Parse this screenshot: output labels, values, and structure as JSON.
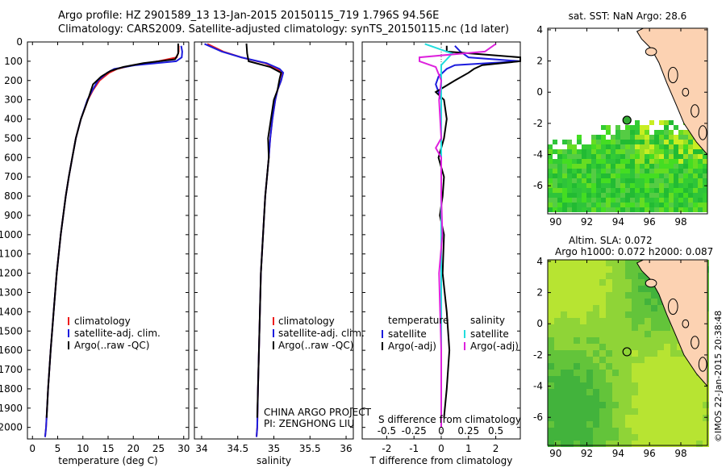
{
  "header": {
    "line1": "Argo profile: HZ 2901589_13 13-Jan-2015 20150115_719 1.796S 94.56E",
    "line2": "Climatology: CARS2009. Satellite-adjusted climatology: synTS_20150115.nc (1d later)"
  },
  "colors": {
    "climatology": "#ee1c1c",
    "satellite": "#1c1cdd",
    "argo": "#000000",
    "sal_sat": "#22dddd",
    "sal_argo": "#dd22dd",
    "land": "#fcd2b2"
  },
  "depth_axis": {
    "ticks": [
      0,
      100,
      200,
      300,
      400,
      500,
      600,
      700,
      800,
      900,
      1000,
      1100,
      1200,
      1300,
      1400,
      1500,
      1600,
      1700,
      1800,
      1900,
      2000
    ],
    "range": [
      0,
      2060
    ]
  },
  "chart_data": [
    {
      "type": "line",
      "name": "temperature",
      "xlabel": "temperature (deg C)",
      "xlim": [
        -1,
        31
      ],
      "xticks": [
        0,
        5,
        10,
        15,
        20,
        25,
        30
      ],
      "legend": [
        "climatology",
        "satellite-adj. clim.",
        "Argo(..raw -QC)"
      ],
      "series": [
        {
          "name": "climatology",
          "depth": [
            20,
            50,
            80,
            100,
            120,
            140,
            160,
            200,
            250,
            300,
            400,
            500,
            600,
            700,
            800,
            1000,
            1200,
            1400,
            1600,
            1800,
            2000,
            2050
          ],
          "values": [
            29.0,
            29.0,
            28.6,
            25.0,
            20.0,
            16.8,
            15.2,
            13.3,
            12.0,
            11.0,
            9.6,
            8.6,
            7.9,
            7.2,
            6.6,
            5.6,
            4.8,
            4.2,
            3.6,
            3.1,
            2.7,
            2.5
          ]
        },
        {
          "name": "satellite-adj. clim.",
          "depth": [
            20,
            50,
            80,
            100,
            120,
            140,
            160,
            200,
            250,
            300,
            400,
            500,
            600,
            700,
            800,
            1000,
            1200,
            1400,
            1600,
            1800,
            2000,
            2050
          ],
          "values": [
            29.5,
            29.7,
            29.6,
            28.5,
            20.5,
            16.2,
            14.8,
            13.0,
            11.9,
            10.9,
            9.6,
            8.6,
            7.9,
            7.2,
            6.6,
            5.6,
            4.8,
            4.2,
            3.6,
            3.1,
            2.7,
            2.5
          ]
        },
        {
          "name": "Argo(..raw -QC)",
          "depth": [
            8,
            30,
            60,
            90,
            110,
            130,
            150,
            180,
            220,
            300,
            400,
            500,
            600,
            700,
            800,
            1000,
            1200,
            1400,
            1600,
            1800,
            1950
          ],
          "values": [
            28.9,
            28.9,
            28.9,
            28.3,
            22.0,
            18.0,
            15.5,
            13.6,
            12.0,
            11.0,
            9.6,
            8.6,
            7.9,
            7.2,
            6.6,
            5.6,
            4.8,
            4.2,
            3.6,
            3.1,
            2.8
          ]
        }
      ]
    },
    {
      "type": "line",
      "name": "salinity",
      "xlabel": "salinity",
      "xlim": [
        33.9,
        36.1
      ],
      "xticks": [
        34,
        34.5,
        35,
        35.5,
        36
      ],
      "legend": [
        "climatology",
        "satellite-adj. clim.",
        "Argo(..raw -QC)"
      ],
      "series": [
        {
          "name": "climatology",
          "depth": [
            10,
            50,
            80,
            110,
            140,
            160,
            200,
            250,
            300,
            400,
            500,
            600,
            800,
            1000,
            1200,
            1500,
            1800,
            2000,
            2050
          ],
          "values": [
            34.08,
            34.3,
            34.55,
            34.88,
            35.05,
            35.12,
            35.1,
            35.05,
            35.02,
            34.98,
            34.95,
            34.93,
            34.88,
            34.85,
            34.82,
            34.8,
            34.78,
            34.77,
            34.76
          ]
        },
        {
          "name": "satellite-adj. clim.",
          "depth": [
            10,
            50,
            80,
            110,
            140,
            160,
            200,
            250,
            300,
            400,
            500,
            600,
            800,
            1000,
            1200,
            1500,
            1800,
            2000,
            2050
          ],
          "values": [
            34.04,
            34.28,
            34.55,
            34.9,
            35.08,
            35.13,
            35.1,
            35.05,
            35.02,
            34.98,
            34.95,
            34.93,
            34.88,
            34.85,
            34.82,
            34.8,
            34.78,
            34.77,
            34.76
          ]
        },
        {
          "name": "Argo(..raw -QC)",
          "depth": [
            8,
            60,
            100,
            130,
            160,
            190,
            250,
            300,
            400,
            500,
            600,
            800,
            1000,
            1200,
            1500,
            1800,
            1950
          ],
          "values": [
            34.62,
            34.63,
            34.65,
            34.95,
            35.1,
            35.08,
            35.05,
            35.0,
            34.96,
            34.92,
            34.93,
            34.88,
            34.85,
            34.82,
            34.8,
            34.78,
            34.77
          ]
        }
      ]
    },
    {
      "type": "line",
      "name": "difference",
      "xlabel": "T difference from climatology",
      "xlim": [
        -2.9,
        2.9
      ],
      "xticks": [
        -2,
        -1,
        0,
        1,
        2
      ],
      "sticks_label": "S difference from climatology",
      "sticks": [
        -0.5,
        -0.25,
        0,
        0.25,
        0.5
      ],
      "stick_labels": [
        "-0.5",
        "-0.25",
        "0",
        "0.25",
        "0.5"
      ],
      "legend": {
        "temperature_title": "temperature",
        "temperature": [
          "satellite",
          "Argo(-adj)"
        ],
        "salinity_title": "salinity",
        "salinity": [
          "satellite",
          "Argo(-adj)"
        ]
      },
      "series": [
        {
          "name": "T satellite",
          "depth": [
            20,
            50,
            80,
            100,
            120,
            140,
            180,
            220,
            260,
            300,
            400,
            600,
            1000,
            1500,
            2000
          ],
          "values": [
            0.5,
            0.7,
            1.0,
            3.0,
            0.5,
            0.2,
            -0.1,
            -0.2,
            -0.1,
            0,
            0,
            0,
            0,
            0,
            0
          ]
        },
        {
          "name": "T Argo(-adj)",
          "depth": [
            20,
            50,
            80,
            100,
            120,
            140,
            160,
            200,
            260,
            300,
            400,
            500,
            600,
            700,
            800,
            900,
            1000,
            1200,
            1400,
            1600,
            1800,
            1950
          ],
          "values": [
            0.2,
            0.2,
            3.0,
            3.0,
            1.5,
            1.2,
            1.0,
            0.5,
            -0.2,
            0.1,
            0.2,
            0.1,
            -0.1,
            0.1,
            0.05,
            -0.05,
            0.1,
            0.05,
            0.2,
            0.3,
            0.2,
            0.1
          ]
        },
        {
          "name": "S satellite",
          "depth": [
            10,
            60,
            90,
            120,
            150,
            200,
            300,
            400,
            600,
            1000,
            1500,
            2000
          ],
          "values": [
            -0.15,
            0.1,
            0.05,
            0,
            0,
            0,
            0,
            0,
            0,
            0,
            0,
            0
          ]
        },
        {
          "name": "S Argo(-adj)",
          "depth": [
            10,
            50,
            80,
            100,
            130,
            200,
            300,
            500,
            550,
            600,
            800,
            1000,
            1200,
            1400,
            1600,
            1800,
            2000
          ],
          "values": [
            0.5,
            0.4,
            -0.2,
            -0.2,
            -0.05,
            0,
            -0.02,
            0,
            -0.05,
            0,
            0,
            0.01,
            -0.02,
            -0.01,
            0,
            0,
            0
          ]
        }
      ]
    },
    {
      "type": "heatmap",
      "name": "sat-sst-map",
      "title": "sat. SST: NaN Argo: 28.6",
      "xticks": [
        90,
        92,
        94,
        96,
        98
      ],
      "yticks": [
        4,
        2,
        0,
        -2,
        -4,
        -6
      ],
      "xlim": [
        89.5,
        99.7
      ],
      "ylim": [
        -7.8,
        4.1
      ],
      "argo_lon": 94.56,
      "argo_lat": -1.796
    },
    {
      "type": "heatmap",
      "name": "sla-map",
      "title1": "Altim. SLA: 0.072",
      "title2": "Argo h1000: 0.072 h2000: 0.087",
      "xticks": [
        90,
        92,
        94,
        96,
        98
      ],
      "yticks": [
        4,
        2,
        0,
        -2,
        -4,
        -6
      ],
      "xlim": [
        89.5,
        99.7
      ],
      "ylim": [
        -7.8,
        4.1
      ],
      "argo_lon": 94.56,
      "argo_lat": -1.796
    }
  ],
  "annotations": {
    "project": "CHINA ARGO PROJECT",
    "pi": "PI: ZENGHONG LIU",
    "stamp": "©IMOS 22-Jan-2015 20:38:48"
  }
}
